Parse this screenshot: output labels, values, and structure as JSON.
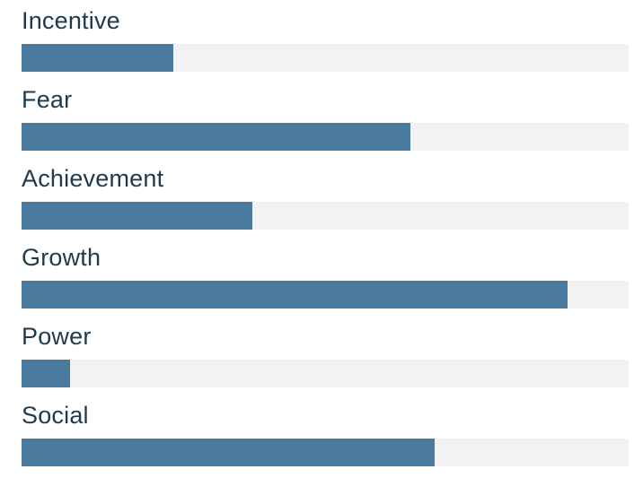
{
  "chart_data": {
    "type": "bar",
    "orientation": "horizontal",
    "categories": [
      "Incentive",
      "Fear",
      "Achievement",
      "Growth",
      "Power",
      "Social"
    ],
    "values": [
      25,
      64,
      38,
      90,
      8,
      68
    ],
    "xlim": [
      0,
      100
    ],
    "title": "",
    "xlabel": "",
    "ylabel": "",
    "grid": false,
    "legend": "none",
    "colors": {
      "bar": "#4a7a9e",
      "track": "#f2f2f4",
      "label": "#1f3a4d"
    }
  }
}
